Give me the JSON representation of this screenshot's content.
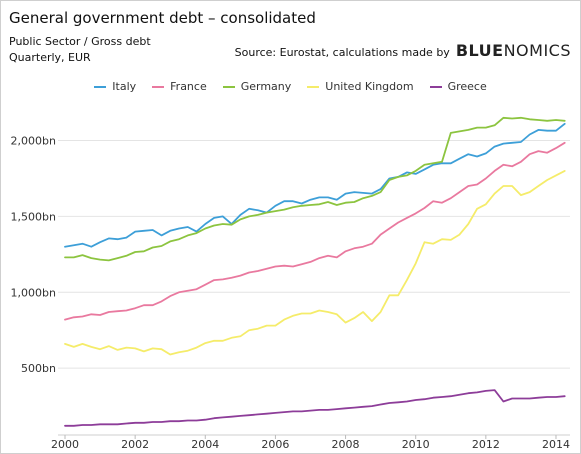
{
  "header": {
    "title": "General government debt – consolidated",
    "subtitle_line1": "Public Sector / Gross debt",
    "subtitle_line2": "Quarterly, EUR",
    "source": "Source: Eurostat, calculations made by",
    "brand_bold": "BLUE",
    "brand_rest": "NOMICS"
  },
  "chart_data": {
    "type": "line",
    "xlim": [
      1999.8,
      2014.4
    ],
    "ylim": [
      0,
      2300
    ],
    "grid": "horizontal",
    "legend": "top-center",
    "x_ticks": [
      2000,
      2002,
      2004,
      2006,
      2008,
      2010,
      2012,
      2014
    ],
    "x_tick_labels": [
      "2000",
      "2002",
      "2004",
      "2006",
      "2008",
      "2010",
      "2012",
      "2014"
    ],
    "y_ticks": [
      500,
      1000,
      1500,
      2000
    ],
    "y_tick_labels": [
      "500bn",
      "1,000bn",
      "1,500bn",
      "2,000bn"
    ],
    "series": [
      {
        "name": "Italy",
        "color": "#3d9fd8",
        "x": [
          2000.0,
          2000.25,
          2000.5,
          2000.75,
          2001.0,
          2001.25,
          2001.5,
          2001.75,
          2002.0,
          2002.25,
          2002.5,
          2002.75,
          2003.0,
          2003.25,
          2003.5,
          2003.75,
          2004.0,
          2004.25,
          2004.5,
          2004.75,
          2005.0,
          2005.25,
          2005.5,
          2005.75,
          2006.0,
          2006.25,
          2006.5,
          2006.75,
          2007.0,
          2007.25,
          2007.5,
          2007.75,
          2008.0,
          2008.25,
          2008.5,
          2008.75,
          2009.0,
          2009.25,
          2009.5,
          2009.75,
          2010.0,
          2010.25,
          2010.5,
          2010.75,
          2011.0,
          2011.25,
          2011.5,
          2011.75,
          2012.0,
          2012.25,
          2012.5,
          2012.75,
          2013.0,
          2013.25,
          2013.5,
          2013.75,
          2014.0,
          2014.25
        ],
        "y": [
          1300,
          1310,
          1320,
          1300,
          1330,
          1355,
          1350,
          1360,
          1400,
          1405,
          1410,
          1375,
          1405,
          1420,
          1430,
          1400,
          1450,
          1490,
          1500,
          1450,
          1510,
          1550,
          1540,
          1525,
          1570,
          1600,
          1600,
          1585,
          1610,
          1625,
          1625,
          1610,
          1650,
          1660,
          1655,
          1650,
          1680,
          1750,
          1760,
          1790,
          1780,
          1810,
          1840,
          1850,
          1850,
          1880,
          1910,
          1895,
          1915,
          1960,
          1980,
          1985,
          1990,
          2040,
          2070,
          2065,
          2065,
          2110
        ]
      },
      {
        "name": "France",
        "color": "#e9799f",
        "x": [
          2000.0,
          2000.25,
          2000.5,
          2000.75,
          2001.0,
          2001.25,
          2001.5,
          2001.75,
          2002.0,
          2002.25,
          2002.5,
          2002.75,
          2003.0,
          2003.25,
          2003.5,
          2003.75,
          2004.0,
          2004.25,
          2004.5,
          2004.75,
          2005.0,
          2005.25,
          2005.5,
          2005.75,
          2006.0,
          2006.25,
          2006.5,
          2006.75,
          2007.0,
          2007.25,
          2007.5,
          2007.75,
          2008.0,
          2008.25,
          2008.5,
          2008.75,
          2009.0,
          2009.25,
          2009.5,
          2009.75,
          2010.0,
          2010.25,
          2010.5,
          2010.75,
          2011.0,
          2011.25,
          2011.5,
          2011.75,
          2012.0,
          2012.25,
          2012.5,
          2012.75,
          2013.0,
          2013.25,
          2013.5,
          2013.75,
          2014.0,
          2014.25
        ],
        "y": [
          820,
          835,
          840,
          855,
          850,
          870,
          875,
          880,
          895,
          915,
          915,
          940,
          975,
          1000,
          1010,
          1020,
          1050,
          1080,
          1085,
          1095,
          1110,
          1130,
          1140,
          1155,
          1170,
          1175,
          1170,
          1185,
          1200,
          1225,
          1240,
          1230,
          1270,
          1290,
          1300,
          1320,
          1380,
          1420,
          1460,
          1490,
          1520,
          1555,
          1600,
          1590,
          1620,
          1660,
          1700,
          1710,
          1750,
          1800,
          1840,
          1830,
          1860,
          1910,
          1930,
          1920,
          1950,
          1985
        ]
      },
      {
        "name": "Germany",
        "color": "#8cc43f",
        "x": [
          2000.0,
          2000.25,
          2000.5,
          2000.75,
          2001.0,
          2001.25,
          2001.5,
          2001.75,
          2002.0,
          2002.25,
          2002.5,
          2002.75,
          2003.0,
          2003.25,
          2003.5,
          2003.75,
          2004.0,
          2004.25,
          2004.5,
          2004.75,
          2005.0,
          2005.25,
          2005.5,
          2005.75,
          2006.0,
          2006.25,
          2006.5,
          2006.75,
          2007.0,
          2007.25,
          2007.5,
          2007.75,
          2008.0,
          2008.25,
          2008.5,
          2008.75,
          2009.0,
          2009.25,
          2009.5,
          2009.75,
          2010.0,
          2010.25,
          2010.5,
          2010.75,
          2011.0,
          2011.25,
          2011.5,
          2011.75,
          2012.0,
          2012.25,
          2012.5,
          2012.75,
          2013.0,
          2013.25,
          2013.5,
          2013.75,
          2014.0,
          2014.25
        ],
        "y": [
          1230,
          1230,
          1245,
          1225,
          1215,
          1210,
          1225,
          1240,
          1265,
          1270,
          1295,
          1305,
          1335,
          1350,
          1375,
          1390,
          1420,
          1440,
          1450,
          1445,
          1480,
          1500,
          1510,
          1525,
          1535,
          1545,
          1560,
          1570,
          1575,
          1580,
          1595,
          1575,
          1590,
          1595,
          1620,
          1635,
          1660,
          1740,
          1760,
          1770,
          1800,
          1840,
          1850,
          1860,
          2050,
          2060,
          2070,
          2085,
          2085,
          2100,
          2150,
          2145,
          2150,
          2140,
          2135,
          2130,
          2135,
          2130
        ]
      },
      {
        "name": "United Kingdom",
        "color": "#f5ec6a",
        "x": [
          2000.0,
          2000.25,
          2000.5,
          2000.75,
          2001.0,
          2001.25,
          2001.5,
          2001.75,
          2002.0,
          2002.25,
          2002.5,
          2002.75,
          2003.0,
          2003.25,
          2003.5,
          2003.75,
          2004.0,
          2004.25,
          2004.5,
          2004.75,
          2005.0,
          2005.25,
          2005.5,
          2005.75,
          2006.0,
          2006.25,
          2006.5,
          2006.75,
          2007.0,
          2007.25,
          2007.5,
          2007.75,
          2008.0,
          2008.25,
          2008.5,
          2008.75,
          2009.0,
          2009.25,
          2009.5,
          2009.75,
          2010.0,
          2010.25,
          2010.5,
          2010.75,
          2011.0,
          2011.25,
          2011.5,
          2011.75,
          2012.0,
          2012.25,
          2012.5,
          2012.75,
          2013.0,
          2013.25,
          2013.5,
          2013.75,
          2014.0,
          2014.25
        ],
        "y": [
          660,
          640,
          660,
          640,
          625,
          645,
          620,
          635,
          630,
          610,
          630,
          625,
          590,
          605,
          615,
          635,
          665,
          680,
          680,
          700,
          710,
          750,
          760,
          780,
          780,
          820,
          845,
          860,
          860,
          880,
          870,
          855,
          800,
          830,
          870,
          810,
          870,
          980,
          980,
          1080,
          1190,
          1330,
          1320,
          1350,
          1345,
          1380,
          1450,
          1550,
          1580,
          1650,
          1700,
          1700,
          1640,
          1660,
          1700,
          1740,
          1770,
          1800
        ]
      },
      {
        "name": "Greece",
        "color": "#8d3d99",
        "x": [
          2000.0,
          2000.25,
          2000.5,
          2000.75,
          2001.0,
          2001.25,
          2001.5,
          2001.75,
          2002.0,
          2002.25,
          2002.5,
          2002.75,
          2003.0,
          2003.25,
          2003.5,
          2003.75,
          2004.0,
          2004.25,
          2004.5,
          2004.75,
          2005.0,
          2005.25,
          2005.5,
          2005.75,
          2006.0,
          2006.25,
          2006.5,
          2006.75,
          2007.0,
          2007.25,
          2007.5,
          2007.75,
          2008.0,
          2008.25,
          2008.5,
          2008.75,
          2009.0,
          2009.25,
          2009.5,
          2009.75,
          2010.0,
          2010.25,
          2010.5,
          2010.75,
          2011.0,
          2011.25,
          2011.5,
          2011.75,
          2012.0,
          2012.25,
          2012.5,
          2012.75,
          2013.0,
          2013.25,
          2013.5,
          2013.75,
          2014.0,
          2014.25
        ],
        "y": [
          120,
          120,
          125,
          125,
          130,
          130,
          130,
          135,
          140,
          140,
          145,
          145,
          150,
          150,
          155,
          155,
          160,
          170,
          175,
          180,
          185,
          190,
          195,
          200,
          205,
          210,
          215,
          215,
          220,
          225,
          225,
          230,
          235,
          240,
          245,
          250,
          260,
          270,
          275,
          280,
          290,
          295,
          305,
          310,
          315,
          325,
          335,
          340,
          350,
          355,
          280,
          300,
          300,
          300,
          305,
          310,
          310,
          315
        ]
      }
    ]
  }
}
